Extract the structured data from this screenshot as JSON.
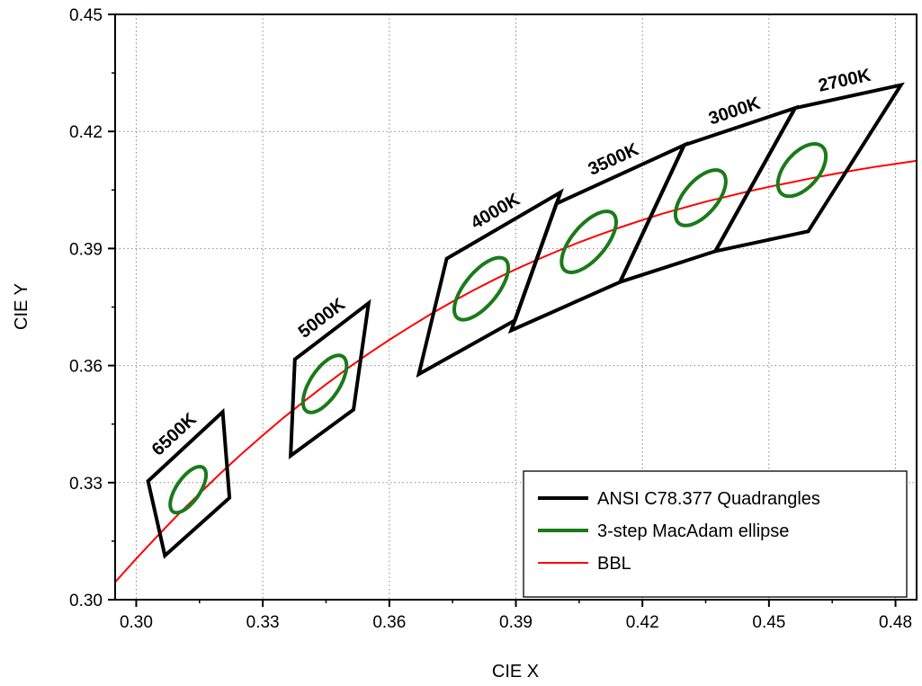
{
  "chart_data": {
    "type": "scatter",
    "title": "",
    "xlabel": "CIE X",
    "ylabel": "CIE Y",
    "xlim": [
      0.295,
      0.485
    ],
    "ylim": [
      0.3,
      0.45
    ],
    "xticks": [
      "0.30",
      "0.33",
      "0.36",
      "0.39",
      "0.42",
      "0.45",
      "0.48"
    ],
    "yticks": [
      "0.30",
      "0.33",
      "0.36",
      "0.39",
      "0.42",
      "0.45"
    ],
    "grid": true,
    "legend_position": "bottom-right",
    "colors": {
      "quadrangle": "#000000",
      "ellipse": "#1a7a1a",
      "bbl": "#ff0000"
    },
    "series": [
      {
        "name": "ANSI C78.377 Quadrangles",
        "color": "#000000"
      },
      {
        "name": "3-step MacAdam ellipse",
        "color": "#1a7a1a"
      },
      {
        "name": "BBL",
        "color": "#ff0000"
      }
    ],
    "quadrangles": [
      {
        "label": "6500K",
        "corners": [
          [
            0.3028,
            0.3304
          ],
          [
            0.3068,
            0.3113
          ],
          [
            0.3221,
            0.3261
          ],
          [
            0.3205,
            0.3481
          ]
        ]
      },
      {
        "label": "5000K",
        "corners": [
          [
            0.3376,
            0.3616
          ],
          [
            0.3366,
            0.3369
          ],
          [
            0.3515,
            0.3487
          ],
          [
            0.3551,
            0.376
          ]
        ]
      },
      {
        "label": "4000K",
        "corners": [
          [
            0.3736,
            0.3874
          ],
          [
            0.367,
            0.3578
          ],
          [
            0.3898,
            0.3716
          ],
          [
            0.4006,
            0.4044
          ]
        ]
      },
      {
        "label": "3500K",
        "corners": [
          [
            0.3996,
            0.4015
          ],
          [
            0.3889,
            0.369
          ],
          [
            0.4147,
            0.3814
          ],
          [
            0.4299,
            0.4165
          ]
        ]
      },
      {
        "label": "3000K",
        "corners": [
          [
            0.4299,
            0.4165
          ],
          [
            0.4147,
            0.3814
          ],
          [
            0.4373,
            0.3893
          ],
          [
            0.4562,
            0.426
          ]
        ]
      },
      {
        "label": "2700K",
        "corners": [
          [
            0.4562,
            0.426
          ],
          [
            0.4373,
            0.3893
          ],
          [
            0.4593,
            0.3944
          ],
          [
            0.4813,
            0.4319
          ]
        ]
      }
    ],
    "ellipses": [
      {
        "cx": 0.3123,
        "cy": 0.3282,
        "a": 0.00669,
        "b": 0.00285,
        "angle_deg": 58.57
      },
      {
        "cx": 0.3447,
        "cy": 0.3553,
        "a": 0.00822,
        "b": 0.00354,
        "angle_deg": 59.62
      },
      {
        "cx": 0.3818,
        "cy": 0.3797,
        "a": 0.00939,
        "b": 0.00402,
        "angle_deg": 54.0
      },
      {
        "cx": 0.4073,
        "cy": 0.3917,
        "a": 0.00927,
        "b": 0.00414,
        "angle_deg": 53.17
      },
      {
        "cx": 0.4338,
        "cy": 0.403,
        "a": 0.00834,
        "b": 0.00408,
        "angle_deg": 53.22
      },
      {
        "cx": 0.4578,
        "cy": 0.4101,
        "a": 0.00774,
        "b": 0.00419,
        "angle_deg": 53.72
      }
    ],
    "bbl_points": [
      [
        0.295,
        0.3045
      ],
      [
        0.3,
        0.3105
      ],
      [
        0.305,
        0.3163
      ],
      [
        0.31,
        0.3219
      ],
      [
        0.315,
        0.3272
      ],
      [
        0.32,
        0.3324
      ],
      [
        0.325,
        0.3374
      ],
      [
        0.33,
        0.3421
      ],
      [
        0.335,
        0.3467
      ],
      [
        0.34,
        0.351
      ],
      [
        0.345,
        0.3552
      ],
      [
        0.35,
        0.3592
      ],
      [
        0.355,
        0.363
      ],
      [
        0.36,
        0.3666
      ],
      [
        0.365,
        0.37
      ],
      [
        0.37,
        0.3733
      ],
      [
        0.375,
        0.3764
      ],
      [
        0.38,
        0.3793
      ],
      [
        0.385,
        0.3821
      ],
      [
        0.39,
        0.3847
      ],
      [
        0.395,
        0.3871
      ],
      [
        0.4,
        0.3894
      ],
      [
        0.405,
        0.3916
      ],
      [
        0.41,
        0.3936
      ],
      [
        0.415,
        0.3955
      ],
      [
        0.42,
        0.3973
      ],
      [
        0.425,
        0.399
      ],
      [
        0.43,
        0.4005
      ],
      [
        0.435,
        0.402
      ],
      [
        0.44,
        0.4033
      ],
      [
        0.445,
        0.4046
      ],
      [
        0.45,
        0.4058
      ],
      [
        0.455,
        0.4069
      ],
      [
        0.46,
        0.408
      ],
      [
        0.465,
        0.409
      ],
      [
        0.47,
        0.41
      ],
      [
        0.475,
        0.4109
      ],
      [
        0.48,
        0.4117
      ],
      [
        0.485,
        0.4125
      ]
    ]
  }
}
